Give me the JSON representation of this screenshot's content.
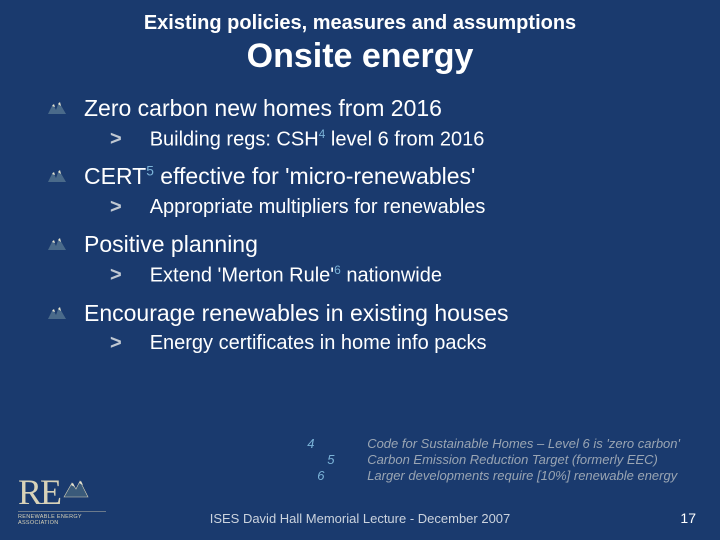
{
  "pretitle": "Existing policies, measures and assumptions",
  "title": "Onsite energy",
  "bullets": [
    {
      "text_parts": [
        "Zero carbon new homes from 2016"
      ],
      "sub": {
        "parts": [
          {
            "t": "Building regs: CSH"
          },
          {
            "sup": "4"
          },
          {
            "t": " level 6 from 2016"
          }
        ]
      }
    },
    {
      "text_parts": [
        {
          "t": "CERT"
        },
        {
          "sup": "5"
        },
        {
          "t": " effective for 'micro-renewables'"
        }
      ],
      "sub": {
        "parts": [
          {
            "t": "Appropriate multipliers for renewables"
          }
        ]
      }
    },
    {
      "text_parts": [
        "Positive planning"
      ],
      "sub": {
        "parts": [
          {
            "t": "Extend 'Merton Rule'"
          },
          {
            "sup": "6"
          },
          {
            "t": " nationwide"
          }
        ]
      }
    },
    {
      "text_parts": [
        "Encourage renewables in existing houses"
      ],
      "sub": {
        "parts": [
          {
            "t": "Energy certificates in home info packs"
          }
        ]
      }
    }
  ],
  "footnotes": [
    {
      "num": "4",
      "text": "Code for Sustainable Homes – Level 6 is 'zero carbon'"
    },
    {
      "num": "5",
      "text": "Carbon Emission Reduction Target (formerly EEC)"
    },
    {
      "num": "6",
      "text": "Larger developments require [10%] renewable energy"
    }
  ],
  "footer": "ISES David Hall Memorial Lecture - December 2007",
  "page_num": "17",
  "logo": {
    "sub": "RENEWABLE ENERGY ASSOCIATION"
  },
  "colors": {
    "bg": "#1a3a6e",
    "text": "#ffffff",
    "sup": "#7bb3d8",
    "fn_text": "#9aa5b3",
    "logo": "#d8d2b8"
  }
}
